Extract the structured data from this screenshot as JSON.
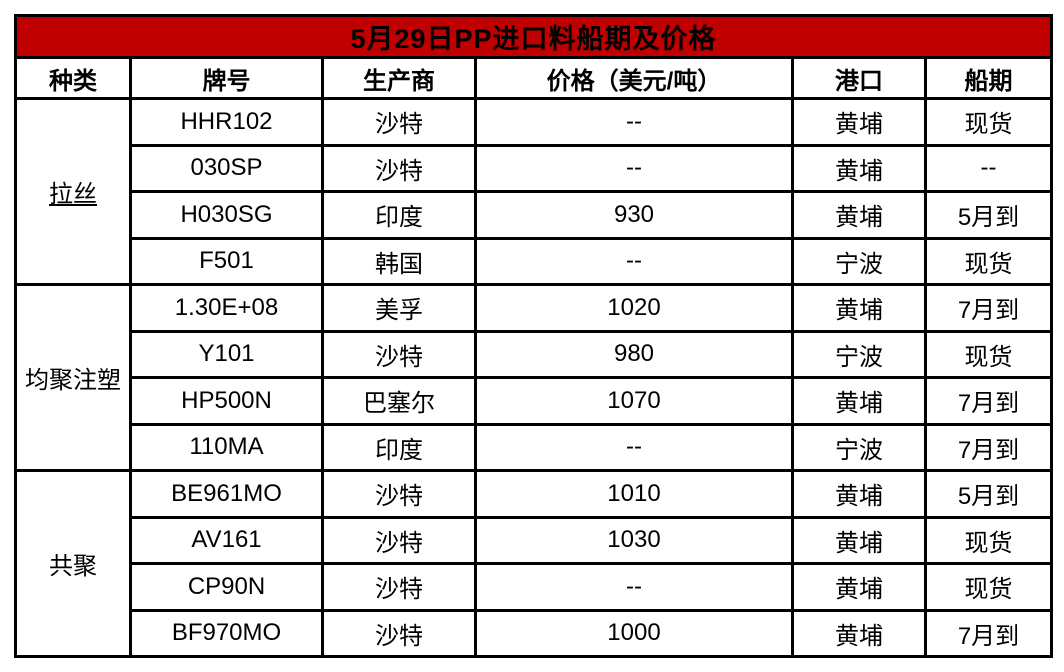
{
  "title": "5月29日PP进口料船期及价格",
  "columns": [
    "种类",
    "牌号",
    "生产商",
    "价格（美元/吨）",
    "港口",
    "船期"
  ],
  "groups": [
    {
      "category": "拉丝",
      "category_underline": true,
      "rows": [
        {
          "grade": "HHR102",
          "producer": "沙特",
          "price": "--",
          "port": "黄埔",
          "shipping": "现货"
        },
        {
          "grade": "030SP",
          "producer": "沙特",
          "price": "--",
          "port": "黄埔",
          "shipping": "--"
        },
        {
          "grade": "H030SG",
          "producer": "印度",
          "price": "930",
          "port": "黄埔",
          "shipping": "5月到"
        },
        {
          "grade": "F501",
          "producer": "韩国",
          "price": "--",
          "port": "宁波",
          "shipping": "现货"
        }
      ]
    },
    {
      "category": "均聚注塑",
      "category_underline": false,
      "rows": [
        {
          "grade": "1.30E+08",
          "producer": "美孚",
          "price": "1020",
          "port": "黄埔",
          "shipping": "7月到"
        },
        {
          "grade": "Y101",
          "producer": "沙特",
          "price": "980",
          "port": "宁波",
          "shipping": "现货"
        },
        {
          "grade": "HP500N",
          "producer": "巴塞尔",
          "price": "1070",
          "port": "黄埔",
          "shipping": "7月到"
        },
        {
          "grade": "110MA",
          "producer": "印度",
          "price": "--",
          "port": "宁波",
          "shipping": "7月到"
        }
      ]
    },
    {
      "category": "共聚",
      "category_underline": false,
      "rows": [
        {
          "grade": "BE961MO",
          "producer": "沙特",
          "price": "1010",
          "port": "黄埔",
          "shipping": "5月到"
        },
        {
          "grade": "AV161",
          "producer": "沙特",
          "price": "1030",
          "port": "黄埔",
          "shipping": "现货"
        },
        {
          "grade": "CP90N",
          "producer": "沙特",
          "price": "--",
          "port": "黄埔",
          "shipping": "现货"
        },
        {
          "grade": "BF970MO",
          "producer": "沙特",
          "price": "1000",
          "port": "黄埔",
          "shipping": "7月到"
        }
      ]
    }
  ],
  "colors": {
    "title_bg": "#C00000",
    "title_text": "#FFFFFF",
    "border": "#000000",
    "cell_text": "#000000",
    "background": "#FFFFFF"
  },
  "chart_data": {
    "type": "table",
    "title": "5月29日PP进口料船期及价格",
    "columns": [
      "种类",
      "牌号",
      "生产商",
      "价格（美元/吨）",
      "港口",
      "船期"
    ],
    "rows": [
      [
        "拉丝",
        "HHR102",
        "沙特",
        "--",
        "黄埔",
        "现货"
      ],
      [
        "拉丝",
        "030SP",
        "沙特",
        "--",
        "黄埔",
        "--"
      ],
      [
        "拉丝",
        "H030SG",
        "印度",
        "930",
        "黄埔",
        "5月到"
      ],
      [
        "拉丝",
        "F501",
        "韩国",
        "--",
        "宁波",
        "现货"
      ],
      [
        "均聚注塑",
        "1.30E+08",
        "美孚",
        "1020",
        "黄埔",
        "7月到"
      ],
      [
        "均聚注塑",
        "Y101",
        "沙特",
        "980",
        "宁波",
        "现货"
      ],
      [
        "均聚注塑",
        "HP500N",
        "巴塞尔",
        "1070",
        "黄埔",
        "7月到"
      ],
      [
        "均聚注塑",
        "110MA",
        "印度",
        "--",
        "宁波",
        "7月到"
      ],
      [
        "共聚",
        "BE961MO",
        "沙特",
        "1010",
        "黄埔",
        "5月到"
      ],
      [
        "共聚",
        "AV161",
        "沙特",
        "1030",
        "黄埔",
        "现货"
      ],
      [
        "共聚",
        "CP90N",
        "沙特",
        "--",
        "黄埔",
        "现货"
      ],
      [
        "共聚",
        "BF970MO",
        "沙特",
        "1000",
        "黄埔",
        "7月到"
      ]
    ]
  }
}
